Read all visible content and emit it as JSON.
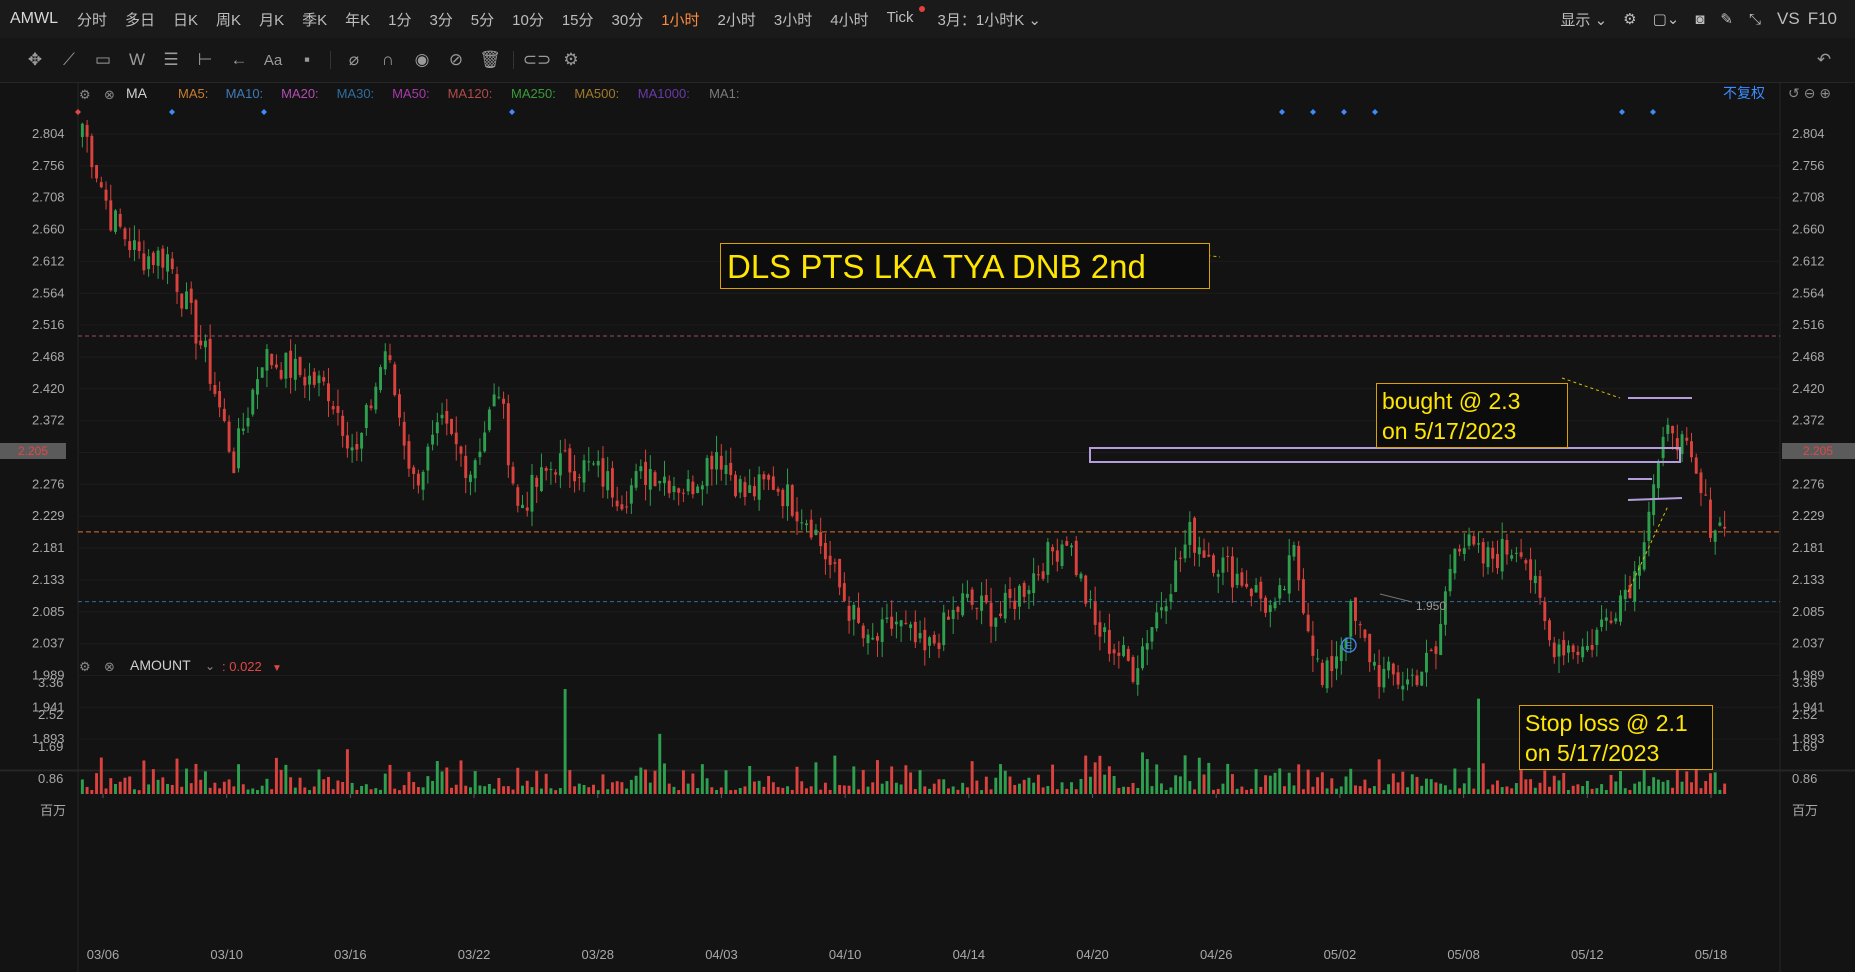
{
  "header": {
    "symbol": "AMWL",
    "periods": [
      "分时",
      "多日",
      "日K",
      "周K",
      "月K",
      "季K",
      "年K",
      "1分",
      "3分",
      "5分",
      "10分",
      "15分",
      "30分",
      "1小时",
      "2小时",
      "3小时",
      "4小时",
      "Tick"
    ],
    "active_period": "1小时",
    "range_label": "3月：1小时K",
    "display_label": "显示",
    "vs_label": "VS",
    "f10_label": "F10"
  },
  "indicators": {
    "main_label": "MA",
    "ma_items": [
      {
        "label": "MA5:",
        "color": "#c97d2f"
      },
      {
        "label": "MA10:",
        "color": "#3f7ab8"
      },
      {
        "label": "MA20:",
        "color": "#b04cb0"
      },
      {
        "label": "MA30:",
        "color": "#2f6ea0"
      },
      {
        "label": "MA50:",
        "color": "#a83aa8"
      },
      {
        "label": "MA120:",
        "color": "#b34a4a"
      },
      {
        "label": "MA250:",
        "color": "#3a9a3a"
      },
      {
        "label": "MA500:",
        "color": "#a07a2a"
      },
      {
        "label": "MA1000:",
        "color": "#6a3aa8"
      },
      {
        "label": "MA1:",
        "color": "#7a7a7a"
      }
    ],
    "adjust_label": "不复权",
    "sub_label": "AMOUNT",
    "sub_value": ": 0.022"
  },
  "annotations": {
    "title": "DLS PTS LKA TYA DNB 2nd",
    "bought_line1": "bought @ 2.3",
    "bought_line2": "on 5/17/2023",
    "stop_line1": "Stop loss @ 2.1",
    "stop_line2": "on 5/17/2023",
    "low_label": "1.950",
    "event_marker": "E"
  },
  "colors": {
    "up": "#2e9e4f",
    "down": "#d9423d",
    "accent": "#ff8a3d",
    "box": "#b39ddb",
    "label_text": "#ffe600"
  },
  "chart_data": {
    "type": "candlestick",
    "price_axis": {
      "ticks": [
        2.804,
        2.756,
        2.708,
        2.66,
        2.612,
        2.564,
        2.516,
        2.468,
        2.42,
        2.372,
        2.324,
        2.276,
        2.229,
        2.181,
        2.133,
        2.085,
        2.037,
        1.989,
        1.941,
        1.893
      ],
      "range": [
        1.86,
        2.835
      ],
      "current_price": "2.205"
    },
    "volume_axis": {
      "ticks": [
        "3.36",
        "2.52",
        "1.69",
        "0.86"
      ],
      "unit": "百万",
      "max": 3.5
    },
    "x_labels": [
      "03/06",
      "03/10",
      "03/16",
      "03/22",
      "03/28",
      "04/03",
      "04/10",
      "04/14",
      "04/20",
      "04/26",
      "05/02",
      "05/08",
      "05/12",
      "05/18"
    ],
    "reference_lines": {
      "resistance": 2.5,
      "current": 2.205,
      "support": 2.1
    },
    "anchors": [
      {
        "i": 0,
        "p": 2.82
      },
      {
        "i": 6,
        "p": 2.68
      },
      {
        "i": 12,
        "p": 2.62
      },
      {
        "i": 18,
        "p": 2.62
      },
      {
        "i": 26,
        "p": 2.47
      },
      {
        "i": 32,
        "p": 2.31
      },
      {
        "i": 38,
        "p": 2.47
      },
      {
        "i": 44,
        "p": 2.45
      },
      {
        "i": 52,
        "p": 2.42
      },
      {
        "i": 58,
        "p": 2.32
      },
      {
        "i": 64,
        "p": 2.48
      },
      {
        "i": 70,
        "p": 2.28
      },
      {
        "i": 76,
        "p": 2.36
      },
      {
        "i": 82,
        "p": 2.3
      },
      {
        "i": 88,
        "p": 2.42
      },
      {
        "i": 92,
        "p": 2.24
      },
      {
        "i": 100,
        "p": 2.31
      },
      {
        "i": 108,
        "p": 2.3
      },
      {
        "i": 114,
        "p": 2.26
      },
      {
        "i": 120,
        "p": 2.3
      },
      {
        "i": 128,
        "p": 2.27
      },
      {
        "i": 134,
        "p": 2.33
      },
      {
        "i": 140,
        "p": 2.26
      },
      {
        "i": 146,
        "p": 2.28
      },
      {
        "i": 154,
        "p": 2.22
      },
      {
        "i": 160,
        "p": 2.12
      },
      {
        "i": 166,
        "p": 2.03
      },
      {
        "i": 172,
        "p": 2.07
      },
      {
        "i": 178,
        "p": 2.02
      },
      {
        "i": 186,
        "p": 2.1
      },
      {
        "i": 194,
        "p": 2.08
      },
      {
        "i": 202,
        "p": 2.15
      },
      {
        "i": 208,
        "p": 2.2
      },
      {
        "i": 214,
        "p": 2.06
      },
      {
        "i": 222,
        "p": 2.0
      },
      {
        "i": 228,
        "p": 2.1
      },
      {
        "i": 234,
        "p": 2.2
      },
      {
        "i": 240,
        "p": 2.16
      },
      {
        "i": 246,
        "p": 2.13
      },
      {
        "i": 252,
        "p": 2.08
      },
      {
        "i": 256,
        "p": 2.17
      },
      {
        "i": 262,
        "p": 1.97
      },
      {
        "i": 268,
        "p": 2.08
      },
      {
        "i": 274,
        "p": 1.99
      },
      {
        "i": 280,
        "p": 1.98
      },
      {
        "i": 286,
        "p": 2.02
      },
      {
        "i": 290,
        "p": 2.2
      },
      {
        "i": 296,
        "p": 2.16
      },
      {
        "i": 304,
        "p": 2.19
      },
      {
        "i": 310,
        "p": 2.04
      },
      {
        "i": 318,
        "p": 2.03
      },
      {
        "i": 324,
        "p": 2.1
      },
      {
        "i": 328,
        "p": 2.14
      },
      {
        "i": 332,
        "p": 2.28
      },
      {
        "i": 336,
        "p": 2.37
      },
      {
        "i": 340,
        "p": 2.3
      },
      {
        "i": 344,
        "p": 2.22
      },
      {
        "i": 347,
        "p": 2.21
      }
    ],
    "volume_spikes": [
      {
        "i": 102,
        "v": 3.28
      },
      {
        "i": 122,
        "v": 1.88
      },
      {
        "i": 295,
        "v": 2.98
      },
      {
        "i": 56,
        "v": 1.4
      },
      {
        "i": 212,
        "v": 1.2
      },
      {
        "i": 341,
        "v": 1.5
      }
    ]
  }
}
